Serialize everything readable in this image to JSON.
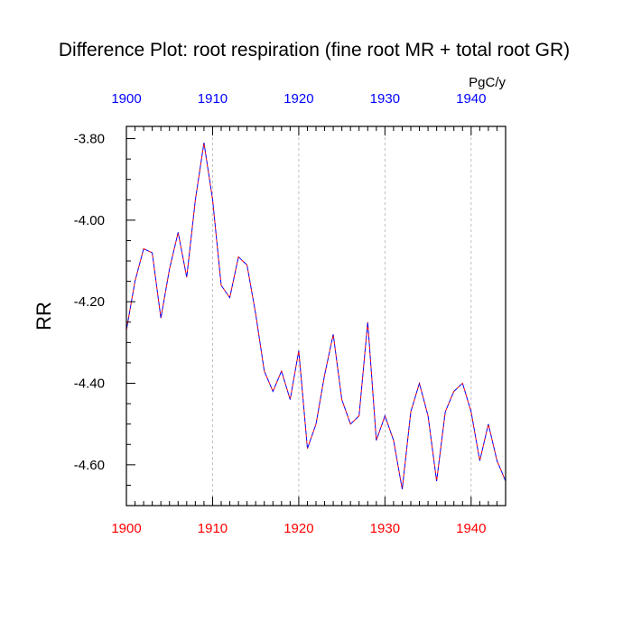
{
  "chart_data": {
    "type": "line",
    "title": "Difference Plot: root respiration (fine root MR + total root GR)",
    "units": "PgC/y",
    "ylabel": "RR",
    "xlim": [
      1900,
      1944
    ],
    "ylim": [
      -4.7,
      -3.77
    ],
    "x_ticks": [
      1900,
      1910,
      1920,
      1930,
      1940
    ],
    "x_tick_labels": [
      "1900",
      "1910",
      "1920",
      "1930",
      "1940"
    ],
    "y_ticks": [
      -3.8,
      -4.0,
      -4.2,
      -4.4,
      -4.6
    ],
    "y_tick_labels": [
      "-3.80",
      "-4.00",
      "-4.20",
      "-4.40",
      "-4.60"
    ],
    "grid": "vertical-dashed",
    "colors": {
      "top_axis": "#0000ff",
      "bottom_axis": "#ff0000",
      "series_a": "#ff0000",
      "series_b": "#0000ff"
    },
    "series": [
      {
        "name": "series_a",
        "x": [
          1900,
          1901,
          1902,
          1903,
          1904,
          1905,
          1906,
          1907,
          1908,
          1909,
          1910,
          1911,
          1912,
          1913,
          1914,
          1915,
          1916,
          1917,
          1918,
          1919,
          1920,
          1921,
          1922,
          1923,
          1924,
          1925,
          1926,
          1927,
          1928,
          1929,
          1930,
          1931,
          1932,
          1933,
          1934,
          1935,
          1936,
          1937,
          1938,
          1939,
          1940,
          1941,
          1942,
          1943,
          1944
        ],
        "values": [
          -4.27,
          -4.15,
          -4.07,
          -4.08,
          -4.24,
          -4.12,
          -4.03,
          -4.14,
          -3.95,
          -3.81,
          -3.95,
          -4.16,
          -4.19,
          -4.09,
          -4.11,
          -4.23,
          -4.37,
          -4.42,
          -4.37,
          -4.44,
          -4.32,
          -4.56,
          -4.5,
          -4.38,
          -4.28,
          -4.44,
          -4.5,
          -4.48,
          -4.25,
          -4.54,
          -4.48,
          -4.54,
          -4.66,
          -4.47,
          -4.4,
          -4.48,
          -4.64,
          -4.47,
          -4.42,
          -4.4,
          -4.47,
          -4.59,
          -4.5,
          -4.59,
          -4.64
        ]
      },
      {
        "name": "series_b",
        "x": [
          1900,
          1901,
          1902,
          1903,
          1904,
          1905,
          1906,
          1907,
          1908,
          1909,
          1910,
          1911,
          1912,
          1913,
          1914,
          1915,
          1916,
          1917,
          1918,
          1919,
          1920,
          1921,
          1922,
          1923,
          1924,
          1925,
          1926,
          1927,
          1928,
          1929,
          1930,
          1931,
          1932,
          1933,
          1934,
          1935,
          1936,
          1937,
          1938,
          1939,
          1940,
          1941,
          1942,
          1943,
          1944
        ],
        "values": [
          -4.27,
          -4.15,
          -4.07,
          -4.08,
          -4.24,
          -4.12,
          -4.03,
          -4.14,
          -3.95,
          -3.81,
          -3.95,
          -4.16,
          -4.19,
          -4.09,
          -4.11,
          -4.23,
          -4.37,
          -4.42,
          -4.37,
          -4.44,
          -4.32,
          -4.56,
          -4.5,
          -4.38,
          -4.28,
          -4.44,
          -4.5,
          -4.48,
          -4.25,
          -4.54,
          -4.48,
          -4.54,
          -4.66,
          -4.47,
          -4.4,
          -4.48,
          -4.64,
          -4.47,
          -4.42,
          -4.4,
          -4.47,
          -4.59,
          -4.5,
          -4.59,
          -4.64
        ]
      }
    ]
  }
}
